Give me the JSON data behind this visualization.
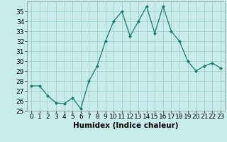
{
  "x": [
    0,
    1,
    2,
    3,
    4,
    5,
    6,
    7,
    8,
    9,
    10,
    11,
    12,
    13,
    14,
    15,
    16,
    17,
    18,
    19,
    20,
    21,
    22,
    23
  ],
  "y": [
    27.5,
    27.5,
    26.5,
    25.8,
    25.7,
    26.3,
    25.2,
    28.0,
    29.5,
    32.0,
    34.0,
    35.0,
    32.5,
    34.0,
    35.5,
    32.8,
    35.5,
    33.0,
    32.0,
    30.0,
    29.0,
    29.5,
    29.8,
    29.3
  ],
  "line_color": "#1a7a6e",
  "marker": "D",
  "marker_size": 2,
  "bg_color": "#c8ecea",
  "grid_color": "#a0ceca",
  "xlabel": "Humidex (Indice chaleur)",
  "xlim": [
    -0.5,
    23.5
  ],
  "ylim": [
    25,
    36
  ],
  "yticks": [
    25,
    26,
    27,
    28,
    29,
    30,
    31,
    32,
    33,
    34,
    35
  ],
  "xticks": [
    0,
    1,
    2,
    3,
    4,
    5,
    6,
    7,
    8,
    9,
    10,
    11,
    12,
    13,
    14,
    15,
    16,
    17,
    18,
    19,
    20,
    21,
    22,
    23
  ],
  "label_fontsize": 7.5,
  "tick_fontsize": 6.5
}
